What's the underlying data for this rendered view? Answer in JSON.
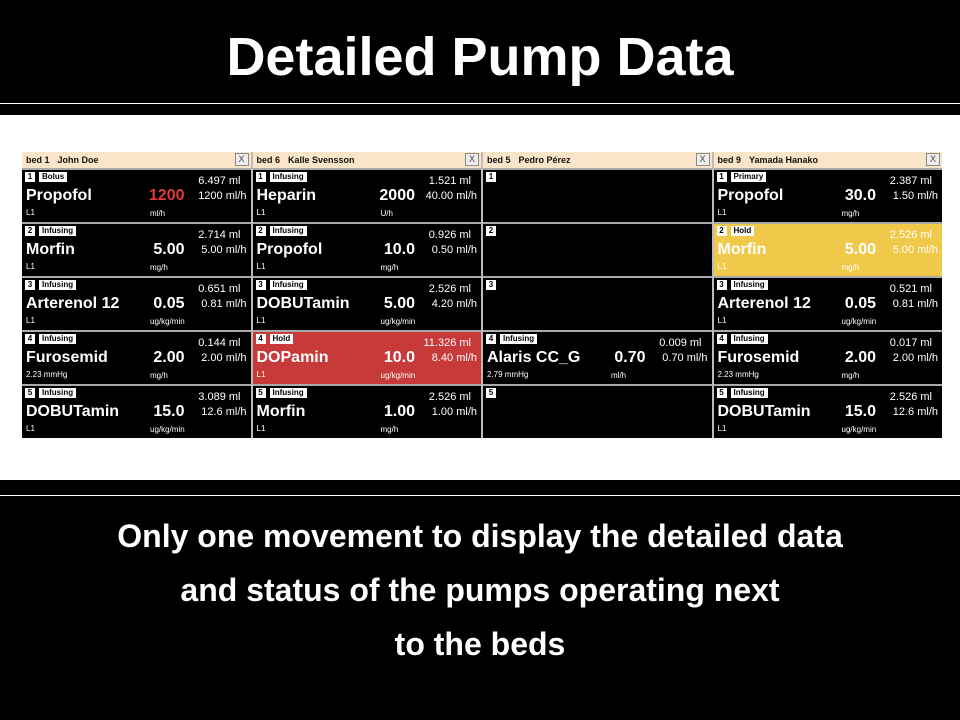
{
  "title": "Detailed Pump Data",
  "caption": [
    "Only one movement to display the detailed data",
    "and status of the pumps operating next",
    "to the beds"
  ],
  "colors": {
    "header": "#fbe5c8",
    "hold_red": "#c83a3a",
    "hold_yellow": "#f1c94a",
    "alert_rate": "#e03a3a"
  },
  "close_label": "X",
  "beds": [
    {
      "bed": "bed 1",
      "patient": "John Doe",
      "slots": [
        {
          "n": "1",
          "status": "Bolus",
          "volume": "6.497 ml",
          "drug": "Propofol",
          "rate": "1200",
          "rate_alert": true,
          "flow": "1200 ml/h",
          "line": "L1",
          "unit": "ml/h"
        },
        {
          "n": "2",
          "status": "Infusing",
          "volume": "2.714 ml",
          "drug": "Morfin",
          "rate": "5.00",
          "flow": "5.00 ml/h",
          "line": "L1",
          "unit": "mg/h"
        },
        {
          "n": "3",
          "status": "Infusing",
          "volume": "0.651 ml",
          "drug": "Arterenol 12",
          "rate": "0.05",
          "flow": "0.81 ml/h",
          "line": "L1",
          "unit": "ug/kg/min"
        },
        {
          "n": "4",
          "status": "Infusing",
          "volume": "0.144 ml",
          "drug": "Furosemid",
          "rate": "2.00",
          "flow": "2.00 ml/h",
          "line": "2.23 mmHg",
          "unit": "mg/h"
        },
        {
          "n": "5",
          "status": "Infusing",
          "volume": "3.089 ml",
          "drug": "DOBUTamin",
          "rate": "15.0",
          "flow": "12.6 ml/h",
          "line": "L1",
          "unit": "ug/kg/min"
        }
      ]
    },
    {
      "bed": "bed 6",
      "patient": "Kalle Svensson",
      "slots": [
        {
          "n": "1",
          "status": "Infusing",
          "volume": "1.521 ml",
          "drug": "Heparin",
          "rate": "2000",
          "flow": "40.00 ml/h",
          "line": "L1",
          "unit": "U/h"
        },
        {
          "n": "2",
          "status": "Infusing",
          "volume": "0.926 ml",
          "drug": "Propofol",
          "rate": "10.0",
          "flow": "0.50 ml/h",
          "line": "L1",
          "unit": "mg/h"
        },
        {
          "n": "3",
          "status": "Infusing",
          "volume": "2.526 ml",
          "drug": "DOBUTamin",
          "rate": "5.00",
          "flow": "4.20 ml/h",
          "line": "L1",
          "unit": "ug/kg/min"
        },
        {
          "n": "4",
          "status": "Hold",
          "highlight": "red",
          "volume": "11.326 ml",
          "drug": "DOPamin",
          "rate": "10.0",
          "flow": "8.40 ml/h",
          "line": "L1",
          "unit": "ug/kg/min"
        },
        {
          "n": "5",
          "status": "Infusing",
          "volume": "2.526 ml",
          "drug": "Morfin",
          "rate": "1.00",
          "flow": "1.00 ml/h",
          "line": "L1",
          "unit": "mg/h"
        }
      ]
    },
    {
      "bed": "bed 5",
      "patient": "Pedro Pérez",
      "slots": [
        {
          "n": "1"
        },
        {
          "n": "2"
        },
        {
          "n": "3"
        },
        {
          "n": "4",
          "status": "Infusing",
          "volume": "0.009 ml",
          "drug": "Alaris CC_G",
          "rate": "0.70",
          "flow": "0.70 ml/h",
          "line": "2.79 mmHg",
          "unit": "ml/h"
        },
        {
          "n": "5"
        }
      ]
    },
    {
      "bed": "bed 9",
      "patient": "Yamada Hanako",
      "slots": [
        {
          "n": "1",
          "status": "Primary",
          "volume": "2.387 ml",
          "drug": "Propofol",
          "rate": "30.0",
          "flow": "1.50 ml/h",
          "line": "L1",
          "unit": "mg/h"
        },
        {
          "n": "2",
          "status": "Hold",
          "highlight": "yellow",
          "volume": "2.526 ml",
          "drug": "Morfin",
          "rate": "5.00",
          "flow": "5.00 ml/h",
          "line": "L1",
          "unit": "mg/h"
        },
        {
          "n": "3",
          "status": "Infusing",
          "volume": "0.521 ml",
          "drug": "Arterenol 12",
          "rate": "0.05",
          "flow": "0.81 ml/h",
          "line": "L1",
          "unit": "ug/kg/min"
        },
        {
          "n": "4",
          "status": "Infusing",
          "volume": "0.017 ml",
          "drug": "Furosemid",
          "rate": "2.00",
          "flow": "2.00 ml/h",
          "line": "2.23 mmHg",
          "unit": "mg/h"
        },
        {
          "n": "5",
          "status": "Infusing",
          "volume": "2.526 ml",
          "drug": "DOBUTamin",
          "rate": "15.0",
          "flow": "12.6 ml/h",
          "line": "L1",
          "unit": "ug/kg/min"
        }
      ]
    }
  ]
}
